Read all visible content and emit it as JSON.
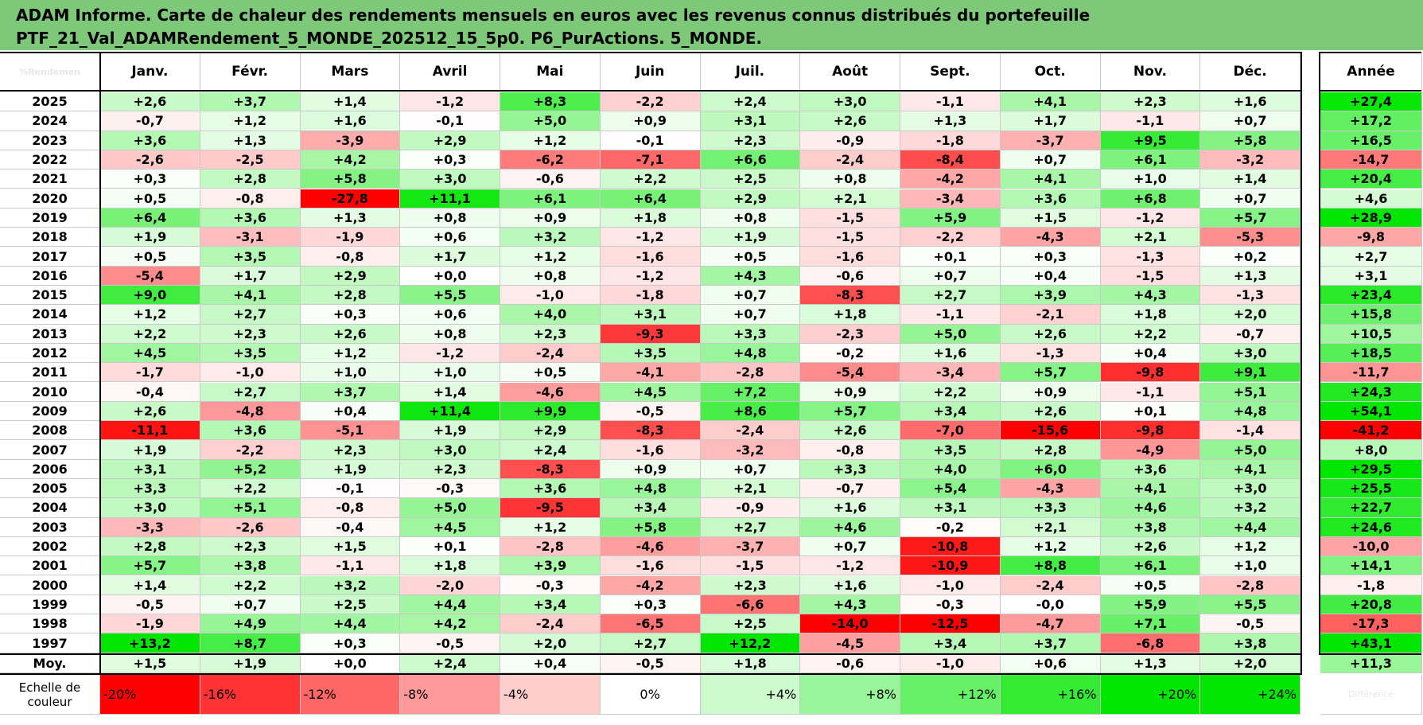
{
  "title": {
    "line1": "ADAM Informe. Carte de chaleur des rendements mensuels en euros avec les revenus connus distribués du portefeuille",
    "line2": "PTF_21_Val_ADAMRendement_5_MONDE_202512_15_5p0. P6_PurActions. 5_MONDE."
  },
  "chart_data": {
    "type": "heatmap",
    "corner_label": "%Rendemen",
    "months": [
      "Janv.",
      "Févr.",
      "Mars",
      "Avril",
      "Mai",
      "Juin",
      "Juil.",
      "Août",
      "Sept.",
      "Oct.",
      "Nov.",
      "Déc."
    ],
    "year_header": "Année",
    "rows": [
      {
        "year": "2025",
        "values": [
          "+2,6",
          "+3,7",
          "+1,4",
          "-1,2",
          "+8,3",
          "-2,2",
          "+2,4",
          "+3,0",
          "-1,1",
          "+4,1",
          "+2,3",
          "+1,6"
        ],
        "annual": "+27,4"
      },
      {
        "year": "2024",
        "values": [
          "-0,7",
          "+1,2",
          "+1,6",
          "-0,1",
          "+5,0",
          "+0,9",
          "+3,1",
          "+2,6",
          "+1,3",
          "+1,7",
          "-1,1",
          "+0,7"
        ],
        "annual": "+17,2"
      },
      {
        "year": "2023",
        "values": [
          "+3,6",
          "+1,3",
          "-3,9",
          "+2,9",
          "+1,2",
          "-0,1",
          "+2,3",
          "-0,9",
          "-1,8",
          "-3,7",
          "+9,5",
          "+5,8"
        ],
        "annual": "+16,5"
      },
      {
        "year": "2022",
        "values": [
          "-2,6",
          "-2,5",
          "+4,2",
          "+0,3",
          "-6,2",
          "-7,1",
          "+6,6",
          "-2,4",
          "-8,4",
          "+0,7",
          "+6,1",
          "-3,2"
        ],
        "annual": "-14,7"
      },
      {
        "year": "2021",
        "values": [
          "+0,3",
          "+2,8",
          "+5,8",
          "+3,0",
          "-0,6",
          "+2,2",
          "+2,5",
          "+0,8",
          "-4,2",
          "+4,1",
          "+1,0",
          "+1,4"
        ],
        "annual": "+20,4"
      },
      {
        "year": "2020",
        "values": [
          "+0,5",
          "-0,8",
          "-27,8",
          "+11,1",
          "+6,1",
          "+6,4",
          "+2,9",
          "+2,1",
          "-3,4",
          "+3,6",
          "+6,8",
          "+0,7"
        ],
        "annual": "+4,6"
      },
      {
        "year": "2019",
        "values": [
          "+6,4",
          "+3,6",
          "+1,3",
          "+0,8",
          "+0,9",
          "+1,8",
          "+0,8",
          "-1,5",
          "+5,9",
          "+1,5",
          "-1,2",
          "+5,7"
        ],
        "annual": "+28,9"
      },
      {
        "year": "2018",
        "values": [
          "+1,9",
          "-3,1",
          "-1,9",
          "+0,6",
          "+3,2",
          "-1,2",
          "+1,9",
          "-1,5",
          "-2,2",
          "-4,3",
          "+2,1",
          "-5,3"
        ],
        "annual": "-9,8"
      },
      {
        "year": "2017",
        "values": [
          "+0,5",
          "+3,5",
          "-0,8",
          "+1,7",
          "+1,2",
          "-1,6",
          "+0,5",
          "-1,6",
          "+0,1",
          "+0,3",
          "-1,3",
          "+0,2"
        ],
        "annual": "+2,7"
      },
      {
        "year": "2016",
        "values": [
          "-5,4",
          "+1,7",
          "+2,9",
          "+0,0",
          "+0,8",
          "-1,2",
          "+4,3",
          "-0,6",
          "+0,7",
          "+0,4",
          "-1,5",
          "+1,3"
        ],
        "annual": "+3,1"
      },
      {
        "year": "2015",
        "values": [
          "+9,0",
          "+4,1",
          "+2,8",
          "+5,5",
          "-1,0",
          "-1,8",
          "+0,7",
          "-8,3",
          "+2,7",
          "+3,9",
          "+4,3",
          "-1,3"
        ],
        "annual": "+23,4"
      },
      {
        "year": "2014",
        "values": [
          "+1,2",
          "+2,7",
          "+0,3",
          "+0,6",
          "+4,0",
          "+3,1",
          "+0,7",
          "+1,8",
          "-1,1",
          "-2,1",
          "+1,8",
          "+2,0"
        ],
        "annual": "+15,8"
      },
      {
        "year": "2013",
        "values": [
          "+2,2",
          "+2,3",
          "+2,6",
          "+0,8",
          "+2,3",
          "-9,3",
          "+3,3",
          "-2,3",
          "+5,0",
          "+2,6",
          "+2,2",
          "-0,7"
        ],
        "annual": "+10,5"
      },
      {
        "year": "2012",
        "values": [
          "+4,5",
          "+3,5",
          "+1,2",
          "-1,2",
          "-2,4",
          "+3,5",
          "+4,8",
          "-0,2",
          "+1,6",
          "-1,3",
          "+0,4",
          "+3,0"
        ],
        "annual": "+18,5"
      },
      {
        "year": "2011",
        "values": [
          "-1,7",
          "-1,0",
          "+1,0",
          "+1,0",
          "+0,5",
          "-4,1",
          "-2,8",
          "-5,4",
          "-3,4",
          "+5,7",
          "-9,8",
          "+9,1"
        ],
        "annual": "-11,7"
      },
      {
        "year": "2010",
        "values": [
          "-0,4",
          "+2,7",
          "+3,7",
          "+1,4",
          "-4,6",
          "+4,5",
          "+7,2",
          "+0,9",
          "+2,2",
          "+0,9",
          "-1,1",
          "+5,1"
        ],
        "annual": "+24,3"
      },
      {
        "year": "2009",
        "values": [
          "+2,6",
          "-4,8",
          "+0,4",
          "+11,4",
          "+9,9",
          "-0,5",
          "+8,6",
          "+5,7",
          "+3,4",
          "+2,6",
          "+0,1",
          "+4,8"
        ],
        "annual": "+54,1"
      },
      {
        "year": "2008",
        "values": [
          "-11,1",
          "+3,6",
          "-5,1",
          "+1,9",
          "+2,9",
          "-8,3",
          "-2,4",
          "+2,6",
          "-7,0",
          "-15,6",
          "-9,8",
          "-1,4"
        ],
        "annual": "-41,2"
      },
      {
        "year": "2007",
        "values": [
          "+1,9",
          "-2,2",
          "+2,3",
          "+3,0",
          "+2,4",
          "-1,6",
          "-3,2",
          "-0,8",
          "+3,5",
          "+2,8",
          "-4,9",
          "+5,0"
        ],
        "annual": "+8,0"
      },
      {
        "year": "2006",
        "values": [
          "+3,1",
          "+5,2",
          "+1,9",
          "+2,3",
          "-8,3",
          "+0,9",
          "+0,7",
          "+3,3",
          "+4,0",
          "+6,0",
          "+3,6",
          "+4,1"
        ],
        "annual": "+29,5"
      },
      {
        "year": "2005",
        "values": [
          "+3,3",
          "+2,2",
          "-0,1",
          "-0,3",
          "+3,6",
          "+4,8",
          "+2,1",
          "-0,7",
          "+5,4",
          "-4,3",
          "+4,1",
          "+3,0"
        ],
        "annual": "+25,5"
      },
      {
        "year": "2004",
        "values": [
          "+3,0",
          "+5,1",
          "-0,8",
          "+5,0",
          "-9,5",
          "+3,4",
          "-0,9",
          "+1,6",
          "+3,1",
          "+3,3",
          "+4,6",
          "+3,2"
        ],
        "annual": "+22,7"
      },
      {
        "year": "2003",
        "values": [
          "-3,3",
          "-2,6",
          "-0,4",
          "+4,5",
          "+1,2",
          "+5,8",
          "+2,7",
          "+4,6",
          "-0,2",
          "+2,1",
          "+3,8",
          "+4,4"
        ],
        "annual": "+24,6"
      },
      {
        "year": "2002",
        "values": [
          "+2,8",
          "+2,3",
          "+1,5",
          "+0,1",
          "-2,8",
          "-4,6",
          "-3,7",
          "+0,7",
          "-10,8",
          "+1,2",
          "+2,6",
          "+1,2"
        ],
        "annual": "-10,0"
      },
      {
        "year": "2001",
        "values": [
          "+5,7",
          "+3,8",
          "-1,1",
          "+1,8",
          "+3,9",
          "-1,6",
          "-1,5",
          "-1,2",
          "-10,9",
          "+8,8",
          "+6,1",
          "+1,0"
        ],
        "annual": "+14,1"
      },
      {
        "year": "2000",
        "values": [
          "+1,4",
          "+2,2",
          "+3,2",
          "-2,0",
          "-0,3",
          "-4,2",
          "+2,3",
          "+1,6",
          "-1,0",
          "-2,4",
          "+0,5",
          "-2,8"
        ],
        "annual": "-1,8"
      },
      {
        "year": "1999",
        "values": [
          "-0,5",
          "+0,7",
          "+2,5",
          "+4,4",
          "+3,4",
          "+0,3",
          "-6,6",
          "+4,3",
          "-0,3",
          "-0,0",
          "+5,9",
          "+5,5"
        ],
        "annual": "+20,8"
      },
      {
        "year": "1998",
        "values": [
          "-1,9",
          "+4,9",
          "+4,4",
          "+4,2",
          "-2,4",
          "-6,5",
          "+2,5",
          "-14,0",
          "-12,5",
          "-4,7",
          "+7,1",
          "-0,5"
        ],
        "annual": "-17,3"
      },
      {
        "year": "1997",
        "values": [
          "+13,2",
          "+8,7",
          "+0,3",
          "-0,5",
          "+2,0",
          "+2,7",
          "+12,2",
          "-4,5",
          "+3,4",
          "+3,7",
          "-6,8",
          "+3,8"
        ],
        "annual": "+43,1"
      }
    ],
    "average": {
      "label": "Moy.",
      "values": [
        "+1,5",
        "+1,9",
        "+0,0",
        "+2,4",
        "+0,4",
        "-0,5",
        "+1,8",
        "-0,6",
        "-1,0",
        "+0,6",
        "+1,3",
        "+2,0"
      ],
      "annual": "+11,3"
    },
    "scale": {
      "label": "Echelle de couleur",
      "steps": [
        "-20%",
        "-16%",
        "-12%",
        "-8%",
        "-4%",
        "0%",
        "+4%",
        "+8%",
        "+12%",
        "+16%",
        "+20%",
        "+24%"
      ],
      "extra_label": "Différence"
    },
    "colors": {
      "title_bg": "#7ec87a",
      "negative_max": "#ff0000",
      "positive_max": "#00e000",
      "neutral": "#ffffff"
    }
  }
}
